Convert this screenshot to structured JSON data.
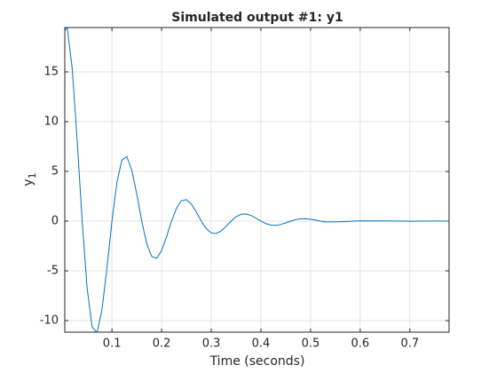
{
  "chart_data": {
    "type": "line",
    "title": "Simulated output #1: y1",
    "xlabel": "Time (seconds)",
    "ylabel": "y",
    "ylabel_subscript": "1",
    "x": [
      0.005,
      0.01,
      0.02,
      0.03,
      0.04,
      0.05,
      0.06,
      0.07,
      0.08,
      0.09,
      0.1,
      0.11,
      0.12,
      0.13,
      0.14,
      0.15,
      0.16,
      0.17,
      0.18,
      0.19,
      0.2,
      0.21,
      0.22,
      0.23,
      0.24,
      0.25,
      0.26,
      0.27,
      0.28,
      0.29,
      0.3,
      0.31,
      0.32,
      0.33,
      0.34,
      0.35,
      0.36,
      0.37,
      0.38,
      0.39,
      0.4,
      0.41,
      0.42,
      0.43,
      0.44,
      0.45,
      0.46,
      0.47,
      0.48,
      0.49,
      0.5,
      0.51,
      0.52,
      0.53,
      0.56,
      0.6,
      0.65,
      0.7,
      0.75,
      0.779
    ],
    "series": [
      {
        "name": "y1",
        "color": "#0072bd",
        "values": [
          19.2,
          19.4,
          15.33,
          8.08,
          0,
          -6.73,
          -10.63,
          -11.21,
          -8.86,
          -4.67,
          0,
          3.89,
          6.14,
          6.47,
          5.12,
          2.7,
          0,
          -2.25,
          -3.55,
          -3.74,
          -2.95,
          -1.56,
          0,
          1.3,
          2.05,
          2.16,
          1.71,
          0.9,
          0,
          -0.75,
          -1.19,
          -1.25,
          -0.99,
          -0.52,
          0,
          0.44,
          0.68,
          0.72,
          0.57,
          0.3,
          0,
          -0.25,
          -0.4,
          -0.42,
          -0.33,
          -0.18,
          0,
          0.15,
          0.23,
          0.24,
          0.19,
          0.1,
          0,
          -0.08,
          -0.07,
          0.03,
          0.02,
          -0.01,
          0.01,
          0
        ]
      }
    ],
    "xlim": [
      0.005,
      0.779
    ],
    "ylim": [
      -11.16,
      19.46
    ],
    "xticks": [
      0.1,
      0.2,
      0.3,
      0.4,
      0.5,
      0.6,
      0.7
    ],
    "yticks": [
      -10,
      -5,
      0,
      5,
      10,
      15
    ],
    "grid": true
  }
}
